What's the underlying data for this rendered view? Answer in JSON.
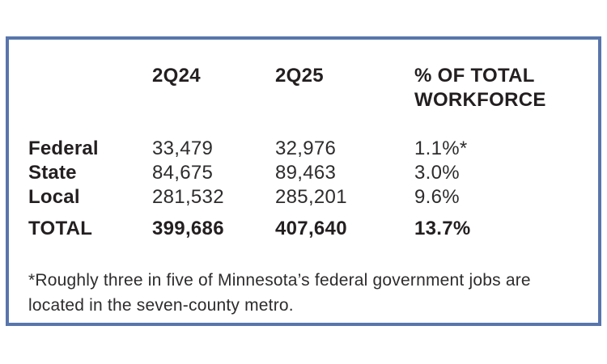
{
  "chart_data": {
    "type": "table",
    "title": "",
    "columns": [
      "",
      "2Q24",
      "2Q25",
      "% OF TOTAL WORKFORCE"
    ],
    "rows": [
      [
        "Federal",
        "33,479",
        "32,976",
        "1.1%*"
      ],
      [
        "State",
        "84,675",
        "89,463",
        "3.0%"
      ],
      [
        "Local",
        "281,532",
        "285,201",
        "9.6%"
      ],
      [
        "TOTAL",
        "399,686",
        "407,640",
        "13.7%"
      ]
    ],
    "footnote": "*Roughly three in five of Minnesota’s federal government jobs are located in the seven-county metro."
  },
  "colors": {
    "border": "#5876ac",
    "text": "#231f20",
    "background": "#ffffff"
  }
}
